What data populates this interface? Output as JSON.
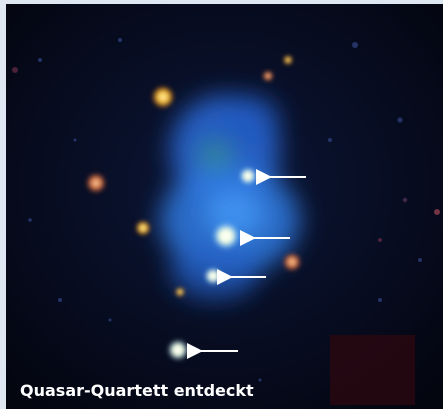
{
  "caption": "Quasar-Quartett entdeckt"
}
